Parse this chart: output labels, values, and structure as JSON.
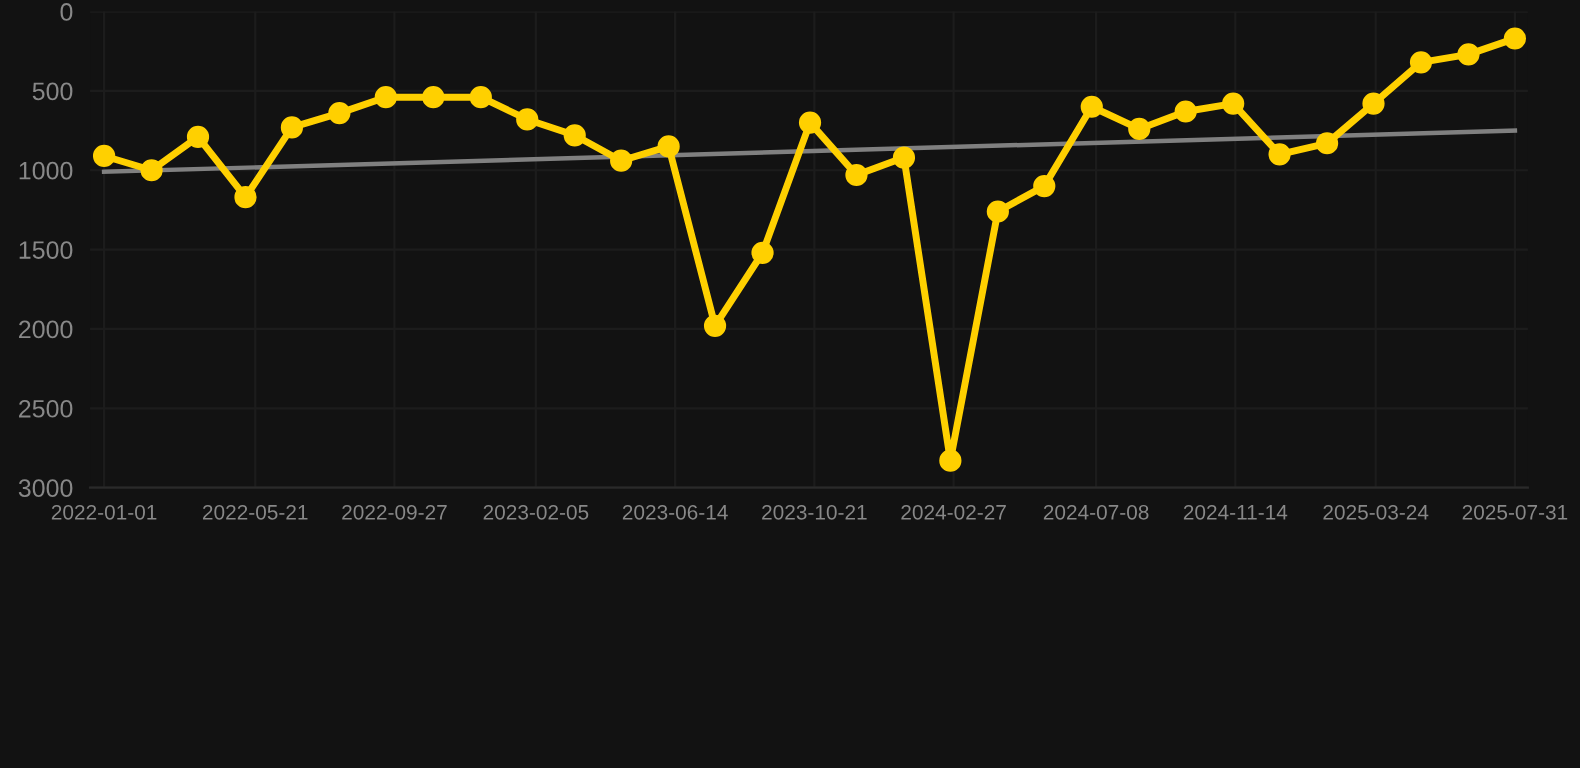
{
  "chart_data": {
    "type": "line",
    "x": [
      "2022-01-01",
      "2022-02-14",
      "2022-03-29",
      "2022-05-12",
      "2022-06-24",
      "2022-08-07",
      "2022-09-19",
      "2022-11-02",
      "2022-12-16",
      "2023-01-28",
      "2023-03-13",
      "2023-04-25",
      "2023-06-08",
      "2023-07-21",
      "2023-09-03",
      "2023-10-17",
      "2023-11-29",
      "2024-01-12",
      "2024-02-24",
      "2024-04-08",
      "2024-05-21",
      "2024-07-04",
      "2024-08-17",
      "2024-09-29",
      "2024-11-12",
      "2024-12-25",
      "2025-02-07",
      "2025-03-22",
      "2025-05-05",
      "2025-06-18",
      "2025-07-31"
    ],
    "series": [
      {
        "color": "#ffd000",
        "marker": "circle",
        "line_style": "solid",
        "values": [
          910,
          1000,
          790,
          1170,
          730,
          640,
          540,
          540,
          540,
          680,
          780,
          940,
          850,
          1980,
          1520,
          700,
          1030,
          920,
          2830,
          1260,
          1100,
          600,
          740,
          630,
          580,
          900,
          830,
          580,
          320,
          270,
          170
        ]
      },
      {
        "color": "#808080",
        "marker": "none",
        "line_style": "solid",
        "x": [
          "2022-01-01",
          "2025-07-31"
        ],
        "values": [
          1010,
          750
        ]
      }
    ],
    "xlim": [
      "2021-12-19",
      "2025-08-12"
    ],
    "xticks": [
      "2022-01-01",
      "2022-05-21",
      "2022-09-27",
      "2023-02-05",
      "2023-06-14",
      "2023-10-21",
      "2024-02-27",
      "2024-07-08",
      "2024-11-14",
      "2025-03-24",
      "2025-07-31"
    ],
    "ylim": [
      3000,
      0
    ],
    "yticks": [
      0,
      500,
      1000,
      1500,
      2000,
      2500,
      3000
    ],
    "grid": true
  }
}
